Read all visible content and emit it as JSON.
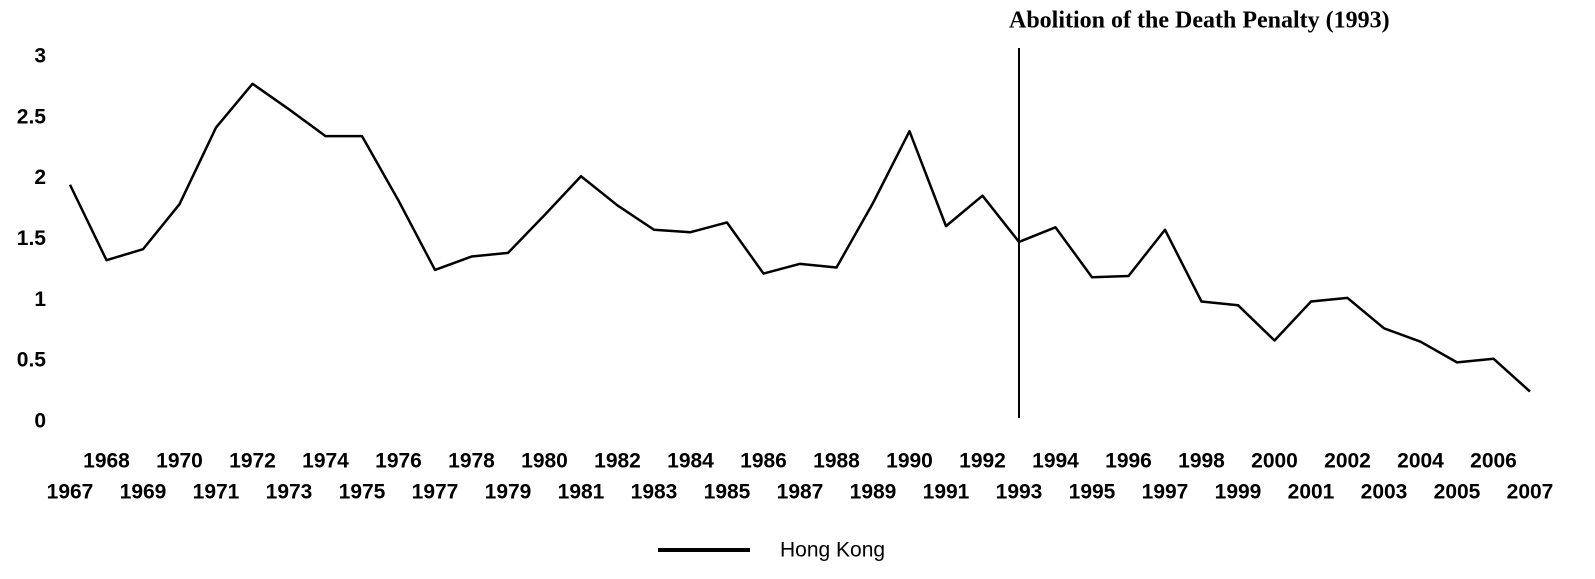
{
  "chart_data": {
    "type": "line",
    "x": [
      1967,
      1968,
      1969,
      1970,
      1971,
      1972,
      1973,
      1974,
      1975,
      1976,
      1977,
      1978,
      1979,
      1980,
      1981,
      1982,
      1983,
      1984,
      1985,
      1986,
      1987,
      1988,
      1989,
      1990,
      1991,
      1992,
      1993,
      1994,
      1995,
      1996,
      1997,
      1998,
      1999,
      2000,
      2001,
      2002,
      2003,
      2004,
      2005,
      2006,
      2007
    ],
    "series": [
      {
        "name": "Hong Kong",
        "color": "#000000",
        "values": [
          1.95,
          1.33,
          1.42,
          1.79,
          2.42,
          2.78,
          2.57,
          2.35,
          2.35,
          1.82,
          1.25,
          1.36,
          1.39,
          1.7,
          2.02,
          1.78,
          1.58,
          1.56,
          1.64,
          1.22,
          1.3,
          1.27,
          1.8,
          2.39,
          1.61,
          1.86,
          1.48,
          1.6,
          1.19,
          1.2,
          1.58,
          0.99,
          0.96,
          0.67,
          0.99,
          1.02,
          0.77,
          0.66,
          0.49,
          0.52,
          0.25
        ]
      }
    ],
    "xlim": [
      1967,
      2007
    ],
    "xticks": [
      1967,
      1968,
      1969,
      1970,
      1971,
      1972,
      1973,
      1974,
      1975,
      1976,
      1977,
      1978,
      1979,
      1980,
      1981,
      1982,
      1983,
      1984,
      1985,
      1986,
      1987,
      1988,
      1989,
      1990,
      1991,
      1992,
      1993,
      1994,
      1995,
      1996,
      1997,
      1998,
      1999,
      2000,
      2001,
      2002,
      2003,
      2004,
      2005,
      2006,
      2007
    ],
    "ylim": [
      0,
      3
    ],
    "yticks": [
      0,
      0.5,
      1,
      1.5,
      2,
      2.5,
      3
    ],
    "annotations": [
      {
        "text": "Abolition of the Death Penalty (1993)",
        "x": 1993
      }
    ],
    "legend": "bottom"
  }
}
